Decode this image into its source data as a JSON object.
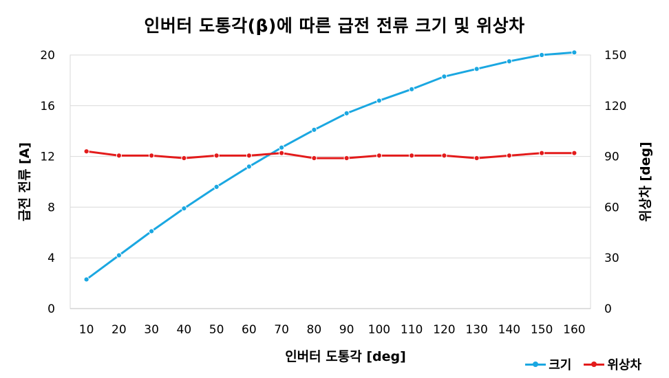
{
  "chart_data": {
    "type": "line",
    "title": "인버터 도통각(β)에 따른 급전 전류 크기 및 위상차",
    "xlabel": "인버터 도통각 [deg]",
    "ylabel": "급전 전류 [A]",
    "y2label": "위상차 [deg]",
    "x": [
      10,
      20,
      30,
      40,
      50,
      60,
      70,
      80,
      90,
      100,
      110,
      120,
      130,
      140,
      150,
      160
    ],
    "ylim": [
      0,
      20
    ],
    "yticks": [
      0,
      4,
      8,
      12,
      16,
      20
    ],
    "y2lim": [
      0,
      150
    ],
    "y2ticks": [
      0,
      30,
      60,
      90,
      120,
      150
    ],
    "grid": true,
    "legend_position": "bottom-right",
    "series": [
      {
        "name": "크기",
        "axis": "left",
        "color": "#1aa7e1",
        "values": [
          2.3,
          4.2,
          6.1,
          7.9,
          9.6,
          11.2,
          12.7,
          14.1,
          15.4,
          16.4,
          17.3,
          18.3,
          18.9,
          19.5,
          20.0,
          20.2
        ]
      },
      {
        "name": "위상차",
        "axis": "right",
        "color": "#e31b1b",
        "values": [
          93,
          90.5,
          90.5,
          89,
          90.5,
          90.5,
          92,
          89,
          89,
          90.5,
          90.5,
          90.5,
          89,
          90.5,
          92,
          92
        ]
      }
    ]
  }
}
